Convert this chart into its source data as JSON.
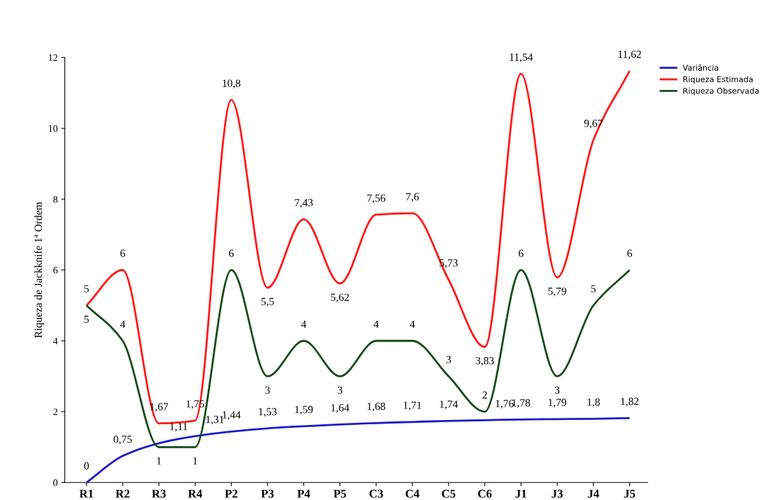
{
  "chart_data": {
    "type": "line",
    "ylabel": "Riqueza de Jackknife 1ª Ordem",
    "categories": [
      "R1",
      "R2",
      "R3",
      "R4",
      "P2",
      "P3",
      "P4",
      "P5",
      "C3",
      "C4",
      "C5",
      "C6",
      "J1",
      "J3",
      "J4",
      "J5"
    ],
    "series": [
      {
        "name": "Variância",
        "color": "#1c1cc8",
        "values": [
          0,
          0.75,
          1.11,
          1.31,
          1.44,
          1.53,
          1.59,
          1.64,
          1.68,
          1.71,
          1.74,
          1.76,
          1.78,
          1.79,
          1.8,
          1.82
        ],
        "value_labels": [
          "0",
          "0,75",
          "1,11",
          "1,31",
          "1,44",
          "1,53",
          "1,59",
          "1,64",
          "1,68",
          "1,71",
          "1,74",
          "1,76",
          "1,78",
          "1,79",
          "1,8",
          "1,82"
        ]
      },
      {
        "name": "Riqueza Estimada",
        "color": "#ff1a1a",
        "values": [
          5,
          6,
          1.67,
          1.75,
          10.8,
          5.5,
          7.43,
          5.62,
          7.56,
          7.6,
          5.73,
          3.83,
          11.54,
          5.79,
          9.67,
          11.62
        ],
        "value_labels": [
          "5",
          "6",
          "1,67",
          "1,75",
          "10,8",
          "5,5",
          "7,43",
          "5,62",
          "7,56",
          "7,6",
          "5,73",
          "3,83",
          "11,54",
          "5,79",
          "9,67",
          "11,62"
        ]
      },
      {
        "name": "Riqueza Observada",
        "color": "#1a4a1a",
        "values": [
          5,
          4,
          1,
          1,
          6,
          3,
          4,
          3,
          4,
          4,
          3,
          2,
          6,
          3,
          5,
          6
        ],
        "value_labels": [
          "5",
          "4",
          "1",
          "1",
          "6",
          "3",
          "4",
          "3",
          "4",
          "4",
          "3",
          "2",
          "6",
          "3",
          "5",
          "6"
        ]
      }
    ],
    "ylim": [
      0,
      12
    ],
    "yticks": [
      0,
      2,
      4,
      6,
      8,
      10,
      12
    ],
    "legend": "top right",
    "grid": false,
    "line_style": "solid",
    "marker": "none"
  }
}
